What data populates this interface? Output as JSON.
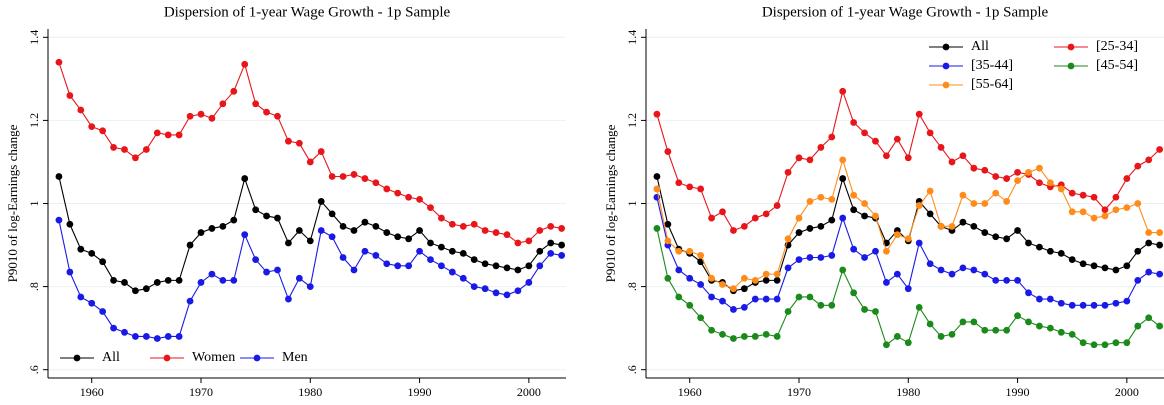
{
  "chart_data": [
    {
      "type": "line",
      "title": "Dispersion of 1-year Wage Growth - 1p Sample",
      "y_label": "P9010 of log-Earnings change",
      "x": [
        1957,
        1958,
        1959,
        1960,
        1961,
        1962,
        1963,
        1964,
        1965,
        1966,
        1967,
        1968,
        1969,
        1970,
        1971,
        1972,
        1973,
        1974,
        1975,
        1976,
        1977,
        1978,
        1979,
        1980,
        1981,
        1982,
        1983,
        1984,
        1985,
        1986,
        1987,
        1988,
        1989,
        1990,
        1991,
        1992,
        1993,
        1994,
        1995,
        1996,
        1997,
        1998,
        1999,
        2000,
        2001,
        2002,
        2003
      ],
      "xlim": [
        1956,
        2003.4
      ],
      "xticks": [
        1960,
        1970,
        1980,
        1990,
        2000
      ],
      "ylim": [
        0.58,
        1.42
      ],
      "yticks": [
        {
          "value": 0.6,
          "label": ".6"
        },
        {
          "value": 0.8,
          "label": ".8"
        },
        1,
        1.2,
        1.4
      ],
      "grid": true,
      "legend": "lower left",
      "series": [
        {
          "name": "All",
          "color": "#000000",
          "values": [
            1.065,
            0.95,
            0.89,
            0.88,
            0.86,
            0.815,
            0.81,
            0.79,
            0.795,
            0.81,
            0.815,
            0.815,
            0.9,
            0.93,
            0.94,
            0.945,
            0.96,
            1.06,
            0.985,
            0.97,
            0.965,
            0.905,
            0.935,
            0.91,
            1.005,
            0.975,
            0.945,
            0.935,
            0.955,
            0.945,
            0.93,
            0.92,
            0.915,
            0.935,
            0.905,
            0.895,
            0.885,
            0.88,
            0.865,
            0.855,
            0.85,
            0.845,
            0.84,
            0.85,
            0.885,
            0.905,
            0.9
          ]
        },
        {
          "name": "Women",
          "color": "#e8161b",
          "values": [
            1.34,
            1.26,
            1.225,
            1.185,
            1.175,
            1.135,
            1.13,
            1.11,
            1.13,
            1.17,
            1.165,
            1.165,
            1.21,
            1.215,
            1.205,
            1.24,
            1.27,
            1.335,
            1.24,
            1.22,
            1.21,
            1.15,
            1.145,
            1.1,
            1.125,
            1.065,
            1.065,
            1.07,
            1.06,
            1.05,
            1.035,
            1.025,
            1.015,
            1.01,
            0.99,
            0.965,
            0.95,
            0.945,
            0.95,
            0.935,
            0.93,
            0.925,
            0.905,
            0.91,
            0.935,
            0.945,
            0.94
          ]
        },
        {
          "name": "Men",
          "color": "#1a1ae6",
          "values": [
            0.96,
            0.835,
            0.775,
            0.76,
            0.74,
            0.7,
            0.69,
            0.68,
            0.68,
            0.675,
            0.68,
            0.68,
            0.765,
            0.81,
            0.83,
            0.815,
            0.815,
            0.925,
            0.865,
            0.835,
            0.84,
            0.77,
            0.82,
            0.8,
            0.935,
            0.92,
            0.87,
            0.84,
            0.885,
            0.875,
            0.855,
            0.85,
            0.85,
            0.885,
            0.865,
            0.85,
            0.835,
            0.82,
            0.8,
            0.795,
            0.785,
            0.78,
            0.79,
            0.81,
            0.85,
            0.88,
            0.875
          ]
        }
      ]
    },
    {
      "type": "line",
      "title": "Dispersion of 1-year Wage Growth - 1p Sample",
      "y_label": "P9010 of log-Earnings change",
      "x": [
        1957,
        1958,
        1959,
        1960,
        1961,
        1962,
        1963,
        1964,
        1965,
        1966,
        1967,
        1968,
        1969,
        1970,
        1971,
        1972,
        1973,
        1974,
        1975,
        1976,
        1977,
        1978,
        1979,
        1980,
        1981,
        1982,
        1983,
        1984,
        1985,
        1986,
        1987,
        1988,
        1989,
        1990,
        1991,
        1992,
        1993,
        1994,
        1995,
        1996,
        1997,
        1998,
        1999,
        2000,
        2001,
        2002,
        2003
      ],
      "xlim": [
        1956,
        2003.4
      ],
      "xticks": [
        1960,
        1970,
        1980,
        1990,
        2000
      ],
      "ylim": [
        0.58,
        1.42
      ],
      "yticks": [
        {
          "value": 0.6,
          "label": ".6"
        },
        {
          "value": 0.8,
          "label": ".8"
        },
        1,
        1.2,
        1.4
      ],
      "grid": true,
      "legend": "upper right",
      "series": [
        {
          "name": "All",
          "color": "#000000",
          "values": [
            1.065,
            0.95,
            0.89,
            0.88,
            0.86,
            0.815,
            0.81,
            0.79,
            0.795,
            0.81,
            0.815,
            0.815,
            0.9,
            0.93,
            0.94,
            0.945,
            0.96,
            1.06,
            0.985,
            0.97,
            0.965,
            0.905,
            0.935,
            0.91,
            1.005,
            0.975,
            0.945,
            0.935,
            0.955,
            0.945,
            0.93,
            0.92,
            0.915,
            0.935,
            0.905,
            0.895,
            0.885,
            0.88,
            0.865,
            0.855,
            0.85,
            0.845,
            0.84,
            0.85,
            0.885,
            0.905,
            0.9
          ]
        },
        {
          "name": "[25-34]",
          "color": "#e8161b",
          "values": [
            1.215,
            1.125,
            1.05,
            1.04,
            1.035,
            0.965,
            0.98,
            0.935,
            0.945,
            0.965,
            0.975,
            0.995,
            1.075,
            1.11,
            1.105,
            1.135,
            1.16,
            1.27,
            1.195,
            1.17,
            1.15,
            1.115,
            1.155,
            1.11,
            1.215,
            1.17,
            1.135,
            1.1,
            1.115,
            1.085,
            1.08,
            1.065,
            1.06,
            1.075,
            1.07,
            1.05,
            1.04,
            1.045,
            1.025,
            1.02,
            1.015,
            0.985,
            1.015,
            1.06,
            1.09,
            1.105,
            1.13
          ]
        },
        {
          "name": "[35-44]",
          "color": "#1a1ae6",
          "values": [
            1.015,
            0.9,
            0.84,
            0.82,
            0.805,
            0.775,
            0.765,
            0.745,
            0.75,
            0.77,
            0.77,
            0.77,
            0.845,
            0.865,
            0.87,
            0.87,
            0.875,
            0.965,
            0.89,
            0.87,
            0.885,
            0.81,
            0.83,
            0.795,
            0.905,
            0.855,
            0.84,
            0.83,
            0.845,
            0.84,
            0.83,
            0.815,
            0.815,
            0.815,
            0.785,
            0.77,
            0.77,
            0.76,
            0.755,
            0.755,
            0.755,
            0.755,
            0.76,
            0.765,
            0.815,
            0.835,
            0.83
          ]
        },
        {
          "name": "[45-54]",
          "color": "#1a8a1a",
          "values": [
            0.94,
            0.82,
            0.775,
            0.755,
            0.725,
            0.695,
            0.685,
            0.675,
            0.68,
            0.68,
            0.685,
            0.68,
            0.74,
            0.775,
            0.775,
            0.755,
            0.755,
            0.84,
            0.785,
            0.745,
            0.74,
            0.66,
            0.68,
            0.665,
            0.75,
            0.71,
            0.68,
            0.685,
            0.715,
            0.715,
            0.695,
            0.695,
            0.695,
            0.73,
            0.715,
            0.705,
            0.7,
            0.69,
            0.685,
            0.665,
            0.66,
            0.66,
            0.665,
            0.665,
            0.705,
            0.725,
            0.705
          ]
        },
        {
          "name": "[55-64]",
          "color": "#ff8c1a",
          "values": [
            1.035,
            0.91,
            0.885,
            0.885,
            0.875,
            0.82,
            0.805,
            0.795,
            0.82,
            0.815,
            0.83,
            0.83,
            0.915,
            0.965,
            1.005,
            1.015,
            1.01,
            1.105,
            1.02,
            1.0,
            0.97,
            0.885,
            0.925,
            0.915,
            0.995,
            1.03,
            0.945,
            0.945,
            1.02,
            1.0,
            1.0,
            1.025,
            1.005,
            1.055,
            1.075,
            1.085,
            1.05,
            1.035,
            0.98,
            0.98,
            0.965,
            0.97,
            0.985,
            0.99,
            1.0,
            0.93,
            0.93
          ]
        }
      ]
    }
  ]
}
